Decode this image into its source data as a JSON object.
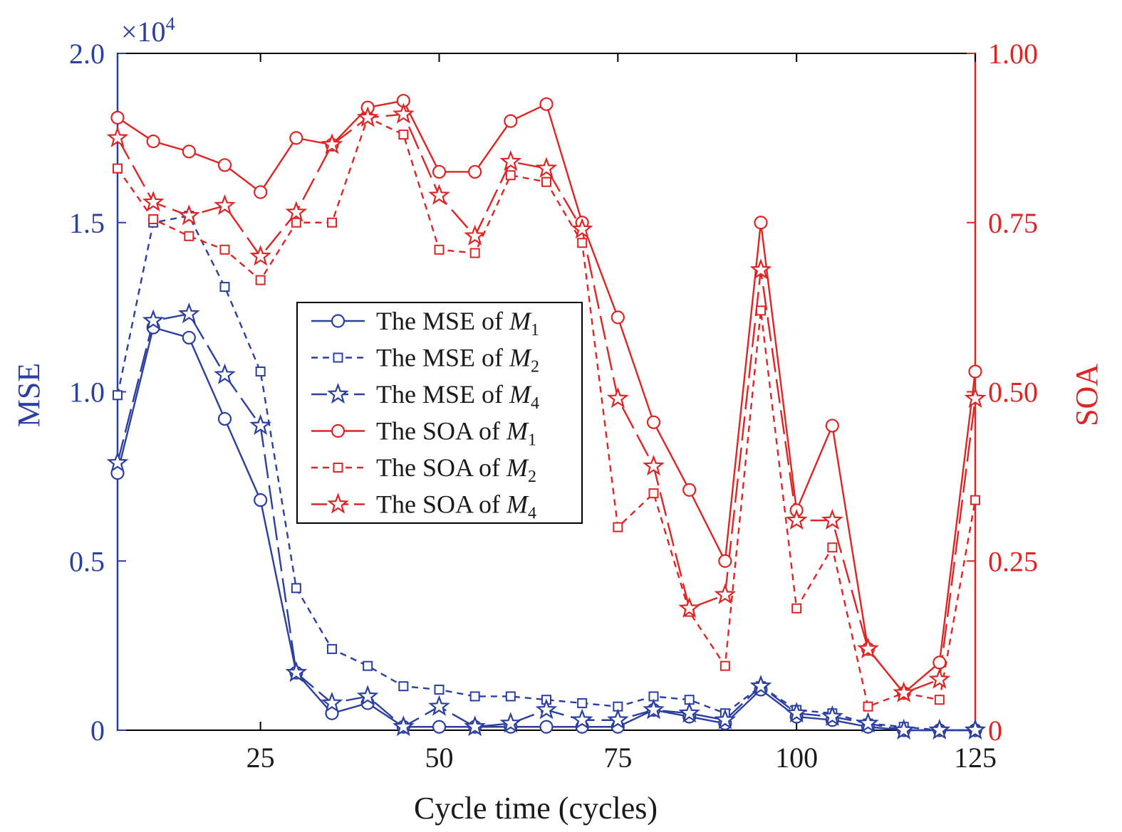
{
  "chart_data": {
    "type": "line",
    "xlabel": "Cycle time (cycles)",
    "ylabel_left": "MSE",
    "ylabel_right": "SOA",
    "left_exponent_base": "×10",
    "left_exponent_power": "4",
    "xlim": [
      5,
      125
    ],
    "ylim_left": [
      0,
      2.0
    ],
    "ylim_right": [
      0,
      1.0
    ],
    "x_ticks": [
      25,
      50,
      75,
      100,
      125
    ],
    "y_left_ticks": [
      "0",
      "0.5",
      "1.0",
      "1.5",
      "2.0"
    ],
    "y_right_ticks": [
      "0",
      "0.25",
      "0.50",
      "0.75",
      "1.00"
    ],
    "legend_position": "center",
    "colors": {
      "mse": "#2b3fa0",
      "soa": "#e02323"
    },
    "x": [
      5,
      10,
      15,
      20,
      25,
      30,
      35,
      40,
      45,
      50,
      55,
      60,
      65,
      70,
      75,
      80,
      85,
      90,
      95,
      100,
      105,
      110,
      115,
      120,
      125
    ],
    "series": [
      {
        "name_prefix": "The MSE of ",
        "name_var": "M",
        "name_sub": "1",
        "axis": "left",
        "marker": "circle",
        "dash": "solid",
        "values": [
          0.76,
          1.19,
          1.16,
          0.92,
          0.68,
          0.17,
          0.05,
          0.08,
          0.01,
          0.01,
          0.01,
          0.01,
          0.01,
          0.01,
          0.01,
          0.06,
          0.04,
          0.02,
          0.12,
          0.04,
          0.03,
          0.01,
          0.0,
          0.0,
          0.0
        ]
      },
      {
        "name_prefix": "The MSE of ",
        "name_var": "M",
        "name_sub": "2",
        "axis": "left",
        "marker": "square",
        "dash": "dotted",
        "values": [
          0.99,
          1.5,
          1.52,
          1.31,
          1.06,
          0.42,
          0.24,
          0.19,
          0.13,
          0.12,
          0.1,
          0.1,
          0.09,
          0.08,
          0.07,
          0.1,
          0.09,
          0.05,
          0.13,
          0.06,
          0.05,
          0.02,
          0.01,
          0.0,
          0.0
        ]
      },
      {
        "name_prefix": "The MSE of ",
        "name_var": "M",
        "name_sub": "4",
        "axis": "left",
        "marker": "star",
        "dash": "longdash",
        "values": [
          0.79,
          1.21,
          1.23,
          1.05,
          0.9,
          0.17,
          0.08,
          0.1,
          0.01,
          0.07,
          0.01,
          0.02,
          0.06,
          0.03,
          0.03,
          0.06,
          0.05,
          0.03,
          0.13,
          0.05,
          0.04,
          0.02,
          0.0,
          0.0,
          0.0
        ]
      },
      {
        "name_prefix": "The SOA of ",
        "name_var": "M",
        "name_sub": "1",
        "axis": "right",
        "marker": "circle",
        "dash": "solid",
        "values": [
          0.905,
          0.87,
          0.855,
          0.835,
          0.795,
          0.875,
          0.865,
          0.92,
          0.93,
          0.825,
          0.825,
          0.9,
          0.925,
          0.75,
          0.61,
          0.455,
          0.355,
          0.25,
          0.75,
          0.325,
          0.45,
          0.12,
          0.055,
          0.1,
          0.53
        ]
      },
      {
        "name_prefix": "The SOA of ",
        "name_var": "M",
        "name_sub": "2",
        "axis": "right",
        "marker": "square",
        "dash": "dotted",
        "values": [
          0.83,
          0.755,
          0.73,
          0.71,
          0.665,
          0.75,
          0.75,
          0.905,
          0.88,
          0.71,
          0.705,
          0.82,
          0.81,
          0.72,
          0.3,
          0.35,
          0.175,
          0.095,
          0.62,
          0.18,
          0.27,
          0.035,
          0.055,
          0.045,
          0.34
        ]
      },
      {
        "name_prefix": "The SOA of ",
        "name_var": "M",
        "name_sub": "4",
        "axis": "right",
        "marker": "star",
        "dash": "longdash",
        "values": [
          0.875,
          0.78,
          0.76,
          0.775,
          0.7,
          0.765,
          0.865,
          0.905,
          0.91,
          0.79,
          0.73,
          0.84,
          0.83,
          0.74,
          0.49,
          0.39,
          0.18,
          0.2,
          0.68,
          0.31,
          0.31,
          0.12,
          0.055,
          0.075,
          0.49
        ]
      }
    ]
  }
}
